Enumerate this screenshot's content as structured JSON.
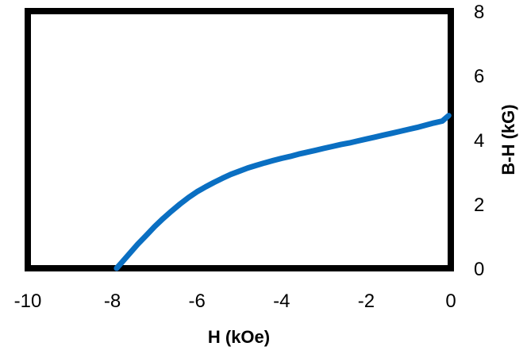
{
  "chart_data": {
    "type": "line",
    "title": "",
    "xlabel": "H (kOe)",
    "ylabel": "B-H (kG)",
    "xlim": [
      -10,
      0
    ],
    "ylim": [
      0,
      8
    ],
    "x_ticks": [
      "-10",
      "-8",
      "-6",
      "-4",
      "-2",
      "0"
    ],
    "y_ticks": [
      "0",
      "2",
      "4",
      "6",
      "8"
    ],
    "y_axis_side": "right",
    "grid": false,
    "legend": "none",
    "series": [
      {
        "color": "#0a6fc2",
        "x": [
          -7.9,
          -7.8,
          -7.6,
          -7.4,
          -7.2,
          -7.0,
          -6.8,
          -6.6,
          -6.4,
          -6.2,
          -6.0,
          -5.8,
          -5.6,
          -5.4,
          -5.2,
          -5.0,
          -4.8,
          -4.6,
          -4.4,
          -4.2,
          -4.0,
          -3.8,
          -3.6,
          -3.4,
          -3.2,
          -3.0,
          -2.8,
          -2.6,
          -2.4,
          -2.2,
          -2.0,
          -1.8,
          -1.6,
          -1.4,
          -1.2,
          -1.0,
          -0.8,
          -0.6,
          -0.4,
          -0.2,
          -0.05
        ],
        "y": [
          0.0,
          0.15,
          0.45,
          0.75,
          1.02,
          1.3,
          1.55,
          1.78,
          2.0,
          2.2,
          2.38,
          2.53,
          2.67,
          2.8,
          2.92,
          3.02,
          3.12,
          3.2,
          3.28,
          3.35,
          3.42,
          3.48,
          3.55,
          3.61,
          3.67,
          3.73,
          3.79,
          3.85,
          3.9,
          3.96,
          4.02,
          4.08,
          4.14,
          4.2,
          4.26,
          4.32,
          4.38,
          4.45,
          4.52,
          4.58,
          4.75
        ]
      }
    ]
  }
}
